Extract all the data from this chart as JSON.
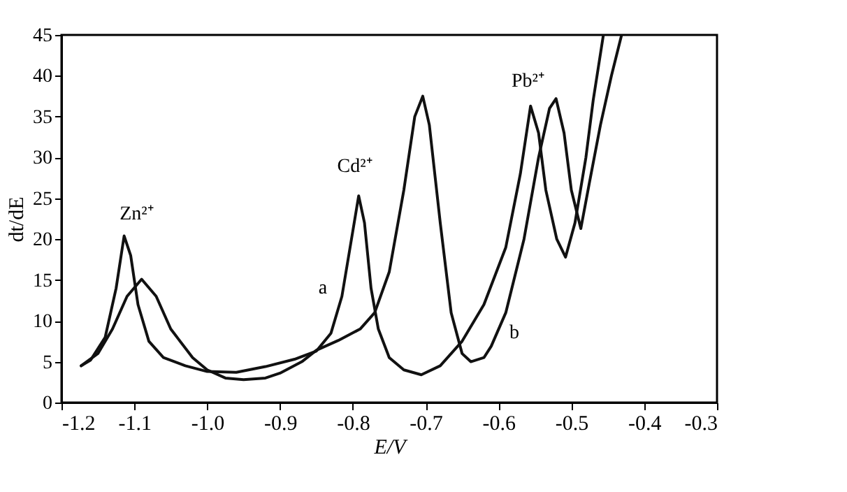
{
  "chart_data": {
    "type": "line",
    "xlabel": "E/V",
    "ylabel": "dt/dE",
    "xlim": [
      -1.2,
      -0.3
    ],
    "ylim": [
      0,
      45
    ],
    "xticks": [
      {
        "value": -1.2,
        "label": "-1.2"
      },
      {
        "value": -1.1,
        "label": "-1.1"
      },
      {
        "value": -1.0,
        "label": "-1.0"
      },
      {
        "value": -0.9,
        "label": "-0.9"
      },
      {
        "value": -0.8,
        "label": "-0.8"
      },
      {
        "value": -0.7,
        "label": "-0.7"
      },
      {
        "value": -0.6,
        "label": "-0.6"
      },
      {
        "value": -0.5,
        "label": "-0.5"
      },
      {
        "value": -0.4,
        "label": "-0.4"
      },
      {
        "value": -0.3,
        "label": "-0.3"
      }
    ],
    "yticks": [
      0,
      5,
      10,
      15,
      20,
      25,
      30,
      35,
      40,
      45
    ],
    "grid": false,
    "marker": "none",
    "line_style": "solid",
    "series": [
      {
        "color": "#111111",
        "x": [
          -1.173,
          -1.16,
          -1.14,
          -1.125,
          -1.114,
          -1.105,
          -1.095,
          -1.08,
          -1.06,
          -1.03,
          -1.0,
          -0.96,
          -0.92,
          -0.88,
          -0.85,
          -0.83,
          -0.815,
          -0.8,
          -0.792,
          -0.784,
          -0.775,
          -0.765,
          -0.75,
          -0.73,
          -0.706,
          -0.68,
          -0.65,
          -0.62,
          -0.59,
          -0.57,
          -0.556,
          -0.545,
          -0.535,
          -0.52,
          -0.508,
          -0.495,
          -0.48,
          -0.47,
          -0.456
        ],
        "values": [
          4.5,
          5.2,
          8,
          14,
          20.4,
          18,
          12,
          7.5,
          5.5,
          4.5,
          3.8,
          3.7,
          4.4,
          5.3,
          6.3,
          8.5,
          13,
          21,
          25.3,
          22,
          14,
          9,
          5.5,
          4,
          3.4,
          4.5,
          7.5,
          12,
          19,
          28,
          36.3,
          33,
          26,
          20,
          17.8,
          22,
          30,
          37,
          45
        ]
      },
      {
        "color": "#111111",
        "x": [
          -1.173,
          -1.15,
          -1.13,
          -1.11,
          -1.09,
          -1.07,
          -1.05,
          -1.02,
          -1.0,
          -0.975,
          -0.95,
          -0.92,
          -0.9,
          -0.87,
          -0.85,
          -0.82,
          -0.79,
          -0.77,
          -0.75,
          -0.73,
          -0.715,
          -0.704,
          -0.695,
          -0.68,
          -0.665,
          -0.65,
          -0.638,
          -0.62,
          -0.61,
          -0.59,
          -0.565,
          -0.545,
          -0.53,
          -0.521,
          -0.51,
          -0.5,
          -0.487,
          -0.475,
          -0.46,
          -0.445,
          -0.431
        ],
        "values": [
          4.5,
          6,
          9,
          13,
          15.1,
          13,
          9,
          5.5,
          4,
          3,
          2.8,
          3,
          3.6,
          5,
          6.4,
          7.6,
          9,
          11,
          16,
          26,
          35,
          37.5,
          34,
          22,
          11,
          6,
          5,
          5.5,
          6.9,
          11,
          20,
          30,
          36,
          37.2,
          33,
          26,
          21.3,
          27,
          34,
          40,
          45
        ]
      }
    ],
    "annotations": [
      "Zn²⁺",
      "Cd²⁺",
      "Pb²⁺",
      "a",
      "b"
    ]
  }
}
